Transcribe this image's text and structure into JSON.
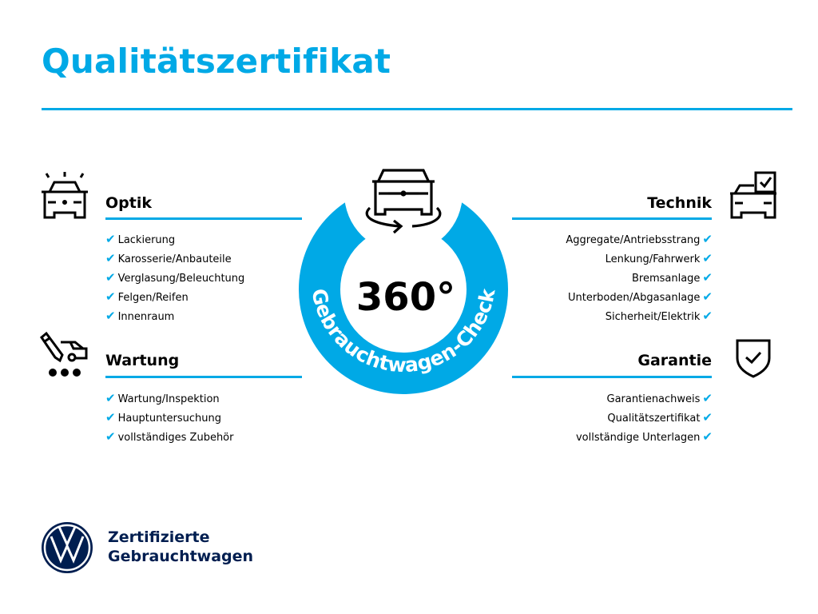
{
  "title": "Qualitätszertifikat",
  "center": {
    "degrees": "360°",
    "ring_text": "Gebrauchtwagen-Check"
  },
  "sections": {
    "optik": {
      "heading": "Optik",
      "items": [
        "Lackierung",
        "Karosserie/Anbauteile",
        "Verglasung/Beleuchtung",
        "Felgen/Reifen",
        "Innenraum"
      ]
    },
    "wartung": {
      "heading": "Wartung",
      "items": [
        "Wartung/Inspektion",
        "Hauptuntersuchung",
        "vollständiges Zubehör"
      ]
    },
    "technik": {
      "heading": "Technik",
      "items": [
        "Aggregate/Antriebsstrang",
        "Lenkung/Fahrwerk",
        "Bremsanlage",
        "Unterboden/Abgasanlage",
        "Sicherheit/Elektrik"
      ]
    },
    "garantie": {
      "heading": "Garantie",
      "items": [
        "Garantienachweis",
        "Qualitätszertifikat",
        "vollständige Unterlagen"
      ]
    }
  },
  "check_mark": "✔",
  "footer": {
    "line1": "Zertifizierte",
    "line2": "Gebrauchtwagen"
  },
  "colors": {
    "accent": "#00a9e6",
    "brand_navy": "#001e50"
  }
}
